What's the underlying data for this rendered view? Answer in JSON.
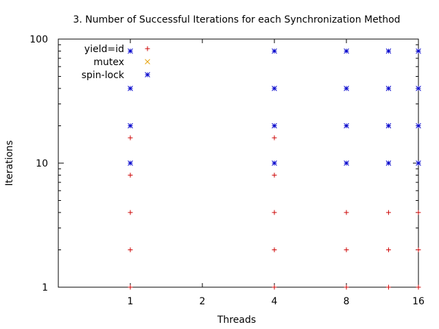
{
  "chart_data": {
    "type": "scatter",
    "title": "3. Number of Successful Iterations for each Synchronization Method",
    "xlabel": "Threads",
    "ylabel": "Iterations",
    "xscale": "log2",
    "yscale": "log10",
    "xlim": [
      0.5,
      16
    ],
    "ylim": [
      1,
      100
    ],
    "xticks": [
      1,
      2,
      4,
      8,
      16
    ],
    "yticks": [
      1,
      10,
      100
    ],
    "grid": false,
    "legend_position": "top-left",
    "series": [
      {
        "name": "yield=id",
        "marker": "plus",
        "color": "#cc0000",
        "points": [
          [
            1,
            1
          ],
          [
            1,
            2
          ],
          [
            1,
            4
          ],
          [
            1,
            8
          ],
          [
            1,
            16
          ],
          [
            4,
            1
          ],
          [
            4,
            2
          ],
          [
            4,
            4
          ],
          [
            4,
            8
          ],
          [
            4,
            16
          ],
          [
            8,
            1
          ],
          [
            8,
            2
          ],
          [
            8,
            4
          ],
          [
            12,
            1
          ],
          [
            12,
            2
          ],
          [
            12,
            4
          ],
          [
            16,
            1
          ],
          [
            16,
            2
          ],
          [
            16,
            4
          ]
        ]
      },
      {
        "name": "mutex",
        "marker": "cross",
        "color": "#e6a000",
        "points": []
      },
      {
        "name": "spin-lock",
        "marker": "star",
        "color": "#0000cc",
        "points": [
          [
            1,
            10
          ],
          [
            1,
            20
          ],
          [
            1,
            40
          ],
          [
            1,
            80
          ],
          [
            4,
            10
          ],
          [
            4,
            20
          ],
          [
            4,
            40
          ],
          [
            4,
            80
          ],
          [
            8,
            10
          ],
          [
            8,
            20
          ],
          [
            8,
            40
          ],
          [
            8,
            80
          ],
          [
            12,
            10
          ],
          [
            12,
            20
          ],
          [
            12,
            40
          ],
          [
            12,
            80
          ],
          [
            16,
            10
          ],
          [
            16,
            20
          ],
          [
            16,
            40
          ],
          [
            16,
            80
          ]
        ]
      }
    ]
  }
}
